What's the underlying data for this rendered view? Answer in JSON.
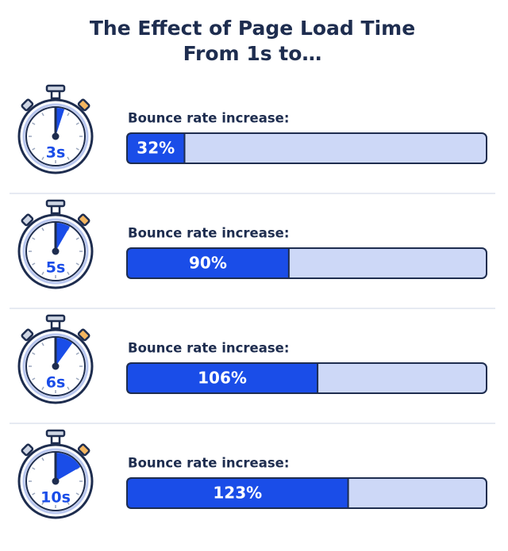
{
  "chart_data": {
    "type": "bar",
    "title": [
      "The Effect of Page Load Time",
      "From 1s to…"
    ],
    "value_caption": "Bounce rate increase:",
    "categories": [
      "3s",
      "5s",
      "6s",
      "10s"
    ],
    "values": [
      32,
      90,
      106,
      123
    ],
    "value_labels": [
      "32%",
      "90%",
      "106%",
      "123%"
    ],
    "xlim": [
      0,
      200
    ],
    "color": "#1a4de8",
    "track_color": "#cdd8f7"
  }
}
